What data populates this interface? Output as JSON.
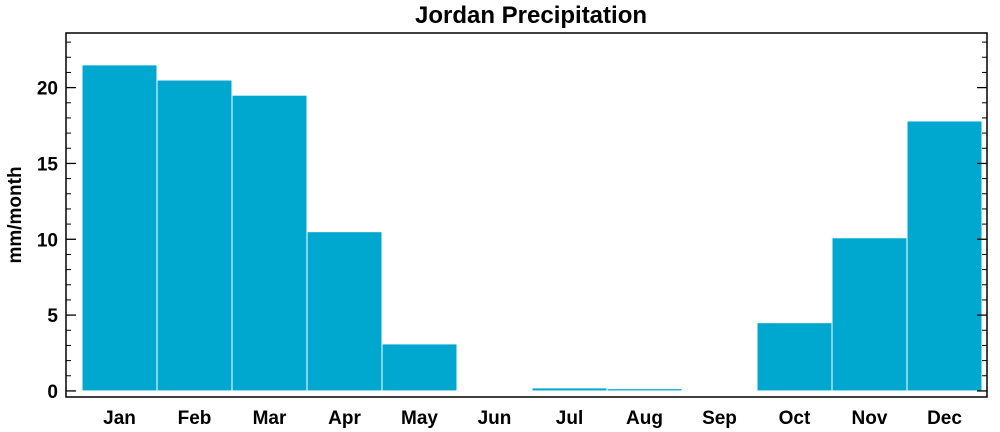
{
  "chart_data": {
    "type": "bar",
    "title": "Jordan Precipitation",
    "xlabel": "",
    "ylabel": "mm/month",
    "categories": [
      "Jan",
      "Feb",
      "Mar",
      "Apr",
      "May",
      "Jun",
      "Jul",
      "Aug",
      "Sep",
      "Oct",
      "Nov",
      "Dec"
    ],
    "values": [
      21.5,
      20.5,
      19.5,
      10.5,
      3.1,
      0.05,
      0.2,
      0.15,
      0.0,
      4.5,
      10.1,
      17.8
    ],
    "ylim": [
      -0.4,
      23.6
    ],
    "yticks": [
      0,
      5,
      10,
      15,
      20
    ],
    "ytick_labels": [
      "0",
      "5",
      "10",
      "15",
      "20"
    ],
    "bar_color": "#00a8d0",
    "grid": false,
    "legend": "none"
  }
}
